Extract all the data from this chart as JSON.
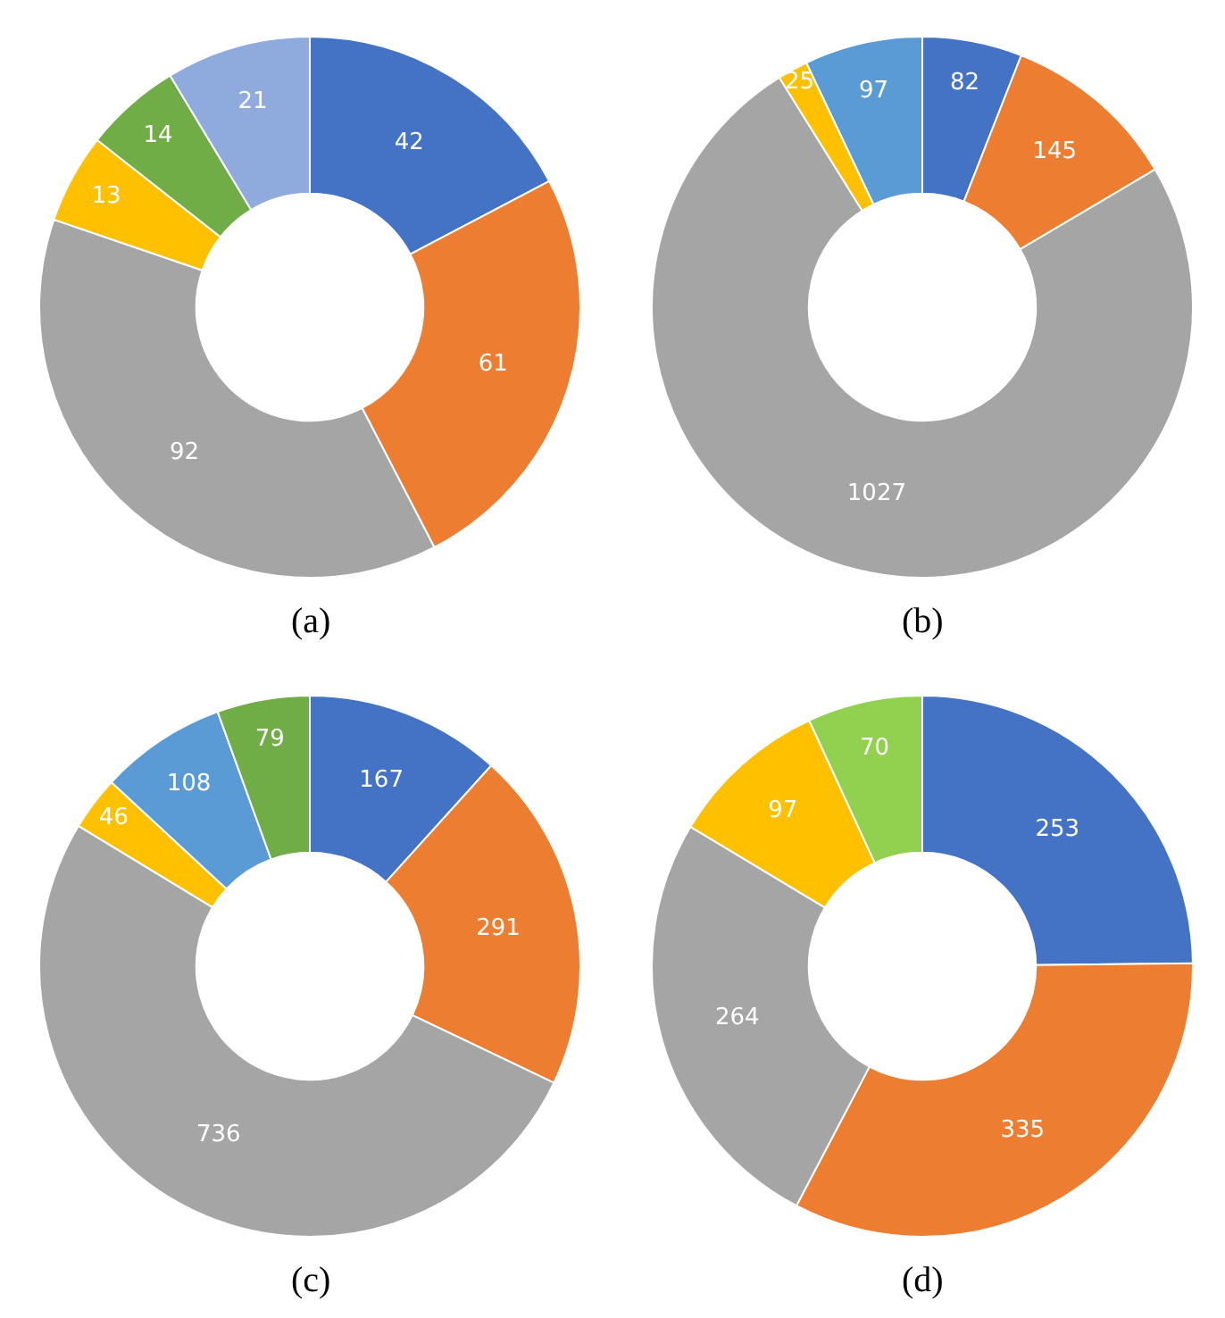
{
  "chart_data": [
    {
      "type": "donut",
      "categories": [
        null,
        null,
        null,
        null,
        null,
        null
      ],
      "values": [
        42,
        61,
        92,
        13,
        14,
        21
      ],
      "colors": [
        "#4472c4",
        "#ed7d31",
        "#a5a5a5",
        "#ffc000",
        "#70ad47",
        "#8faadc"
      ],
      "data_labels": true,
      "legend": false,
      "annotations": [
        "(a)"
      ]
    },
    {
      "type": "donut",
      "categories": [
        null,
        null,
        null,
        null,
        null
      ],
      "values": [
        82,
        145,
        1027,
        25,
        97
      ],
      "colors": [
        "#4472c4",
        "#ed7d31",
        "#a5a5a5",
        "#ffc000",
        "#5b9bd5"
      ],
      "data_labels": true,
      "legend": false,
      "annotations": [
        "(b)"
      ]
    },
    {
      "type": "donut",
      "categories": [
        null,
        null,
        null,
        null,
        null,
        null
      ],
      "values": [
        167,
        291,
        736,
        46,
        108,
        79
      ],
      "colors": [
        "#4472c4",
        "#ed7d31",
        "#a5a5a5",
        "#ffc000",
        "#5b9bd5",
        "#70ad47"
      ],
      "data_labels": true,
      "legend": false,
      "annotations": [
        "(c)"
      ]
    },
    {
      "type": "donut",
      "categories": [
        null,
        null,
        null,
        null,
        null
      ],
      "values": [
        253,
        335,
        264,
        97,
        70
      ],
      "colors": [
        "#4472c4",
        "#ed7d31",
        "#a5a5a5",
        "#ffc000",
        "#92d050"
      ],
      "data_labels": true,
      "legend": false,
      "annotations": [
        "(d)"
      ]
    }
  ]
}
